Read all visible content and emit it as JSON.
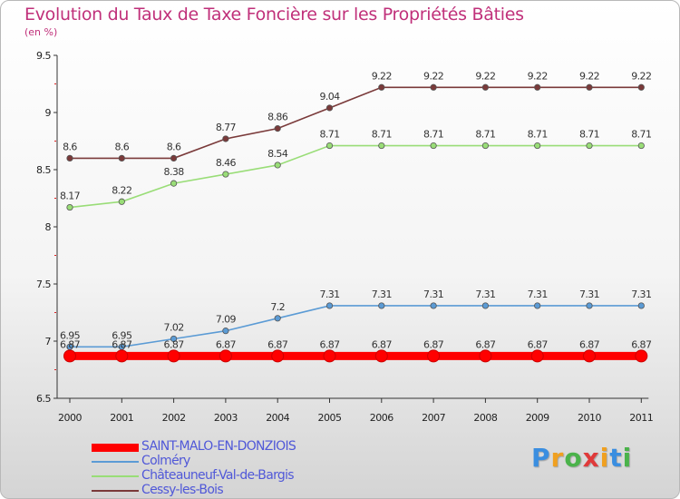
{
  "header": {
    "title": "Evolution du Taux de Taxe Foncière sur les Propriétés Bâties",
    "unit": "(en %)"
  },
  "chart_data": {
    "type": "line",
    "title": "Evolution du Taux de Taxe Foncière sur les Propriétés Bâties",
    "ylabel": "(en %)",
    "xlabel": "",
    "x": [
      "2000",
      "2001",
      "2002",
      "2003",
      "2004",
      "2005",
      "2006",
      "2007",
      "2008",
      "2009",
      "2010",
      "2011"
    ],
    "ylim": [
      6.5,
      9.5
    ],
    "yticks": [
      "6.5",
      "7",
      "7.5",
      "8",
      "8.5",
      "9",
      "9.5"
    ],
    "grid": false,
    "legend_position": "bottom-left",
    "series": [
      {
        "name": "SAINT-MALO-EN-DONZIOIS",
        "color": "#ff0000",
        "values": [
          6.87,
          6.87,
          6.87,
          6.87,
          6.87,
          6.87,
          6.87,
          6.87,
          6.87,
          6.87,
          6.87,
          6.87
        ],
        "labels": [
          "6.87",
          "6.87",
          "6.87",
          "6.87",
          "6.87",
          "6.87",
          "6.87",
          "6.87",
          "6.87",
          "6.87",
          "6.87",
          "6.87"
        ]
      },
      {
        "name": "Colméry",
        "color": "#5b9bd5",
        "values": [
          6.95,
          6.95,
          7.02,
          7.09,
          7.2,
          7.31,
          7.31,
          7.31,
          7.31,
          7.31,
          7.31,
          7.31
        ],
        "labels": [
          "6.95",
          "6.95",
          "7.02",
          "7.09",
          "7.2",
          "7.31",
          "7.31",
          "7.31",
          "7.31",
          "7.31",
          "7.31",
          "7.31"
        ]
      },
      {
        "name": "Châteauneuf-Val-de-Bargis",
        "color": "#99dd77",
        "values": [
          8.17,
          8.22,
          8.38,
          8.46,
          8.54,
          8.71,
          8.71,
          8.71,
          8.71,
          8.71,
          8.71,
          8.71
        ],
        "labels": [
          "8.17",
          "8.22",
          "8.38",
          "8.46",
          "8.54",
          "8.71",
          "8.71",
          "8.71",
          "8.71",
          "8.71",
          "8.71",
          "8.71"
        ]
      },
      {
        "name": "Cessy-les-Bois",
        "color": "#7a3a3a",
        "values": [
          8.6,
          8.6,
          8.6,
          8.77,
          8.86,
          9.04,
          9.22,
          9.22,
          9.22,
          9.22,
          9.22,
          9.22
        ],
        "labels": [
          "8.6",
          "8.6",
          "8.6",
          "8.77",
          "8.86",
          "9.04",
          "9.22",
          "9.22",
          "9.22",
          "9.22",
          "9.22",
          "9.22"
        ]
      }
    ]
  },
  "logo": {
    "text": "Proxiti",
    "letters": [
      {
        "ch": "P",
        "color": "#3a8ee0"
      },
      {
        "ch": "r",
        "color": "#f0a020"
      },
      {
        "ch": "o",
        "color": "#4bb34b"
      },
      {
        "ch": "x",
        "color": "#e03a3a"
      },
      {
        "ch": "i",
        "color": "#f0a020"
      },
      {
        "ch": "t",
        "color": "#3a8ee0"
      },
      {
        "ch": "i",
        "color": "#4bb34b"
      }
    ]
  }
}
